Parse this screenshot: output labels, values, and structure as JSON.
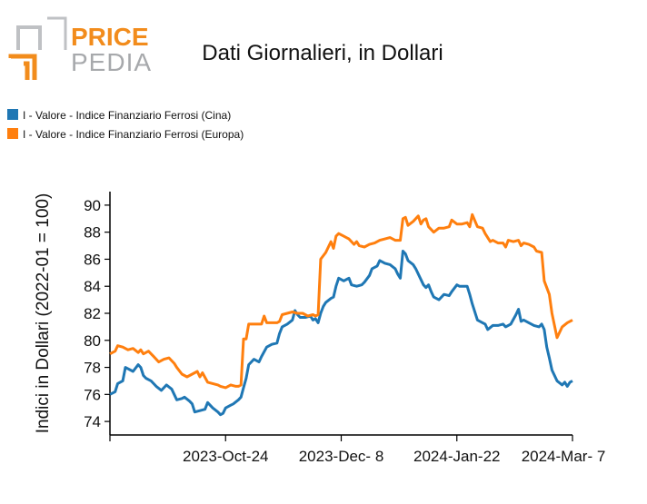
{
  "logo": {
    "line1": "PRICE",
    "line2": "PEDIA",
    "colors": {
      "orange": "#f28c1c",
      "gray": "#a7a9ac"
    }
  },
  "chart_data": {
    "type": "line",
    "title": "Dati Giornalieri, in Dollari",
    "ylabel": "Indici in Dollari (2022-01 = 100)",
    "xlabel": "",
    "ylim": [
      73,
      91
    ],
    "yticks": [
      74,
      76,
      78,
      80,
      82,
      84,
      86,
      88,
      90
    ],
    "xlim": [
      "2023-09-09",
      "2024-03-07"
    ],
    "xticks": [
      "2023-09-09",
      "2023-10-24",
      "2023-12-08",
      "2024-01-22",
      "2024-03-07"
    ],
    "xtick_labels": [
      "",
      "2023-Oct-24",
      "2023-Dec- 8",
      "2024-Jan-22",
      "2024-Mar- 7"
    ],
    "grid": false,
    "legend_position": "top-left",
    "series": [
      {
        "name": "I - Valore - Indice Finanziario Ferrosi (Cina)",
        "color": "#1f77b4",
        "points": [
          [
            "2023-09-09",
            76.0
          ],
          [
            "2023-09-11",
            76.2
          ],
          [
            "2023-09-12",
            76.8
          ],
          [
            "2023-09-14",
            77.0
          ],
          [
            "2023-09-15",
            78.0
          ],
          [
            "2023-09-17",
            77.8
          ],
          [
            "2023-09-18",
            77.7
          ],
          [
            "2023-09-20",
            78.2
          ],
          [
            "2023-09-21",
            78.0
          ],
          [
            "2023-09-22",
            77.4
          ],
          [
            "2023-09-23",
            77.2
          ],
          [
            "2023-09-25",
            77.0
          ],
          [
            "2023-09-27",
            76.6
          ],
          [
            "2023-09-29",
            76.3
          ],
          [
            "2023-10-01",
            76.7
          ],
          [
            "2023-10-03",
            76.4
          ],
          [
            "2023-10-04",
            76.0
          ],
          [
            "2023-10-05",
            75.6
          ],
          [
            "2023-10-07",
            75.7
          ],
          [
            "2023-10-08",
            75.8
          ],
          [
            "2023-10-10",
            75.5
          ],
          [
            "2023-10-11",
            75.3
          ],
          [
            "2023-10-12",
            74.7
          ],
          [
            "2023-10-14",
            74.8
          ],
          [
            "2023-10-16",
            74.9
          ],
          [
            "2023-10-17",
            75.4
          ],
          [
            "2023-10-19",
            75.0
          ],
          [
            "2023-10-21",
            74.7
          ],
          [
            "2023-10-22",
            74.5
          ],
          [
            "2023-10-23",
            74.6
          ],
          [
            "2023-10-24",
            75.0
          ],
          [
            "2023-10-26",
            75.2
          ],
          [
            "2023-10-27",
            75.3
          ],
          [
            "2023-10-29",
            75.6
          ],
          [
            "2023-10-30",
            75.8
          ],
          [
            "2023-10-31",
            76.5
          ],
          [
            "2023-11-01",
            77.2
          ],
          [
            "2023-11-02",
            78.2
          ],
          [
            "2023-11-04",
            78.6
          ],
          [
            "2023-11-06",
            78.4
          ],
          [
            "2023-11-07",
            78.8
          ],
          [
            "2023-11-09",
            79.5
          ],
          [
            "2023-11-11",
            79.7
          ],
          [
            "2023-11-13",
            79.8
          ],
          [
            "2023-11-14",
            80.5
          ],
          [
            "2023-11-15",
            81.0
          ],
          [
            "2023-11-17",
            81.2
          ],
          [
            "2023-11-19",
            81.5
          ],
          [
            "2023-11-20",
            82.2
          ],
          [
            "2023-11-21",
            81.9
          ],
          [
            "2023-11-22",
            81.7
          ],
          [
            "2023-11-24",
            81.7
          ],
          [
            "2023-11-26",
            81.8
          ],
          [
            "2023-11-27",
            81.5
          ],
          [
            "2023-11-28",
            81.6
          ],
          [
            "2023-11-29",
            81.3
          ],
          [
            "2023-11-30",
            82.0
          ],
          [
            "2023-12-01",
            82.5
          ],
          [
            "2023-12-02",
            82.8
          ],
          [
            "2023-12-04",
            83.1
          ],
          [
            "2023-12-05",
            83.2
          ],
          [
            "2023-12-06",
            84.0
          ],
          [
            "2023-12-07",
            84.6
          ],
          [
            "2023-12-09",
            84.4
          ],
          [
            "2023-12-11",
            84.6
          ],
          [
            "2023-12-12",
            84.1
          ],
          [
            "2023-12-14",
            84.0
          ],
          [
            "2023-12-16",
            84.1
          ],
          [
            "2023-12-17",
            84.3
          ],
          [
            "2023-12-19",
            84.8
          ],
          [
            "2023-12-20",
            85.3
          ],
          [
            "2023-12-22",
            85.5
          ],
          [
            "2023-12-23",
            85.9
          ],
          [
            "2023-12-25",
            85.7
          ],
          [
            "2023-12-27",
            85.6
          ],
          [
            "2023-12-29",
            85.3
          ],
          [
            "2023-12-30",
            84.9
          ],
          [
            "2023-12-31",
            84.6
          ],
          [
            "2024-01-01",
            86.6
          ],
          [
            "2024-01-02",
            86.4
          ],
          [
            "2024-01-03",
            85.9
          ],
          [
            "2024-01-05",
            85.6
          ],
          [
            "2024-01-06",
            85.3
          ],
          [
            "2024-01-08",
            84.5
          ],
          [
            "2024-01-09",
            84.1
          ],
          [
            "2024-01-10",
            83.9
          ],
          [
            "2024-01-11",
            84.1
          ],
          [
            "2024-01-12",
            83.6
          ],
          [
            "2024-01-13",
            83.2
          ],
          [
            "2024-01-15",
            83.0
          ],
          [
            "2024-01-17",
            83.4
          ],
          [
            "2024-01-19",
            83.3
          ],
          [
            "2024-01-20",
            83.6
          ],
          [
            "2024-01-22",
            84.1
          ],
          [
            "2024-01-23",
            84.0
          ],
          [
            "2024-01-24",
            84.0
          ],
          [
            "2024-01-26",
            84.0
          ],
          [
            "2024-01-27",
            83.4
          ],
          [
            "2024-01-28",
            82.7
          ],
          [
            "2024-01-30",
            81.5
          ],
          [
            "2024-02-01",
            81.3
          ],
          [
            "2024-02-02",
            81.2
          ],
          [
            "2024-02-03",
            80.8
          ],
          [
            "2024-02-05",
            81.1
          ],
          [
            "2024-02-07",
            81.1
          ],
          [
            "2024-02-09",
            81.2
          ],
          [
            "2024-02-10",
            81.0
          ],
          [
            "2024-02-12",
            81.2
          ],
          [
            "2024-02-14",
            81.9
          ],
          [
            "2024-02-15",
            82.3
          ],
          [
            "2024-02-16",
            81.4
          ],
          [
            "2024-02-17",
            81.5
          ],
          [
            "2024-02-19",
            81.3
          ],
          [
            "2024-02-21",
            81.1
          ],
          [
            "2024-02-23",
            81.0
          ],
          [
            "2024-02-24",
            81.2
          ],
          [
            "2024-02-25",
            80.8
          ],
          [
            "2024-02-26",
            79.5
          ],
          [
            "2024-02-27",
            78.7
          ],
          [
            "2024-02-28",
            77.8
          ],
          [
            "2024-03-01",
            77.0
          ],
          [
            "2024-03-03",
            76.7
          ],
          [
            "2024-03-04",
            76.9
          ],
          [
            "2024-03-05",
            76.6
          ],
          [
            "2024-03-06",
            76.9
          ],
          [
            "2024-03-07",
            77.0
          ]
        ]
      },
      {
        "name": "I - Valore - Indice Finanziario Ferrosi (Europa)",
        "color": "#ff7f0e",
        "points": [
          [
            "2023-09-09",
            79.0
          ],
          [
            "2023-09-11",
            79.2
          ],
          [
            "2023-09-12",
            79.6
          ],
          [
            "2023-09-14",
            79.5
          ],
          [
            "2023-09-16",
            79.3
          ],
          [
            "2023-09-18",
            79.4
          ],
          [
            "2023-09-20",
            79.1
          ],
          [
            "2023-09-21",
            79.3
          ],
          [
            "2023-09-22",
            79.0
          ],
          [
            "2023-09-24",
            79.2
          ],
          [
            "2023-09-26",
            78.8
          ],
          [
            "2023-09-28",
            78.4
          ],
          [
            "2023-09-30",
            78.6
          ],
          [
            "2023-10-02",
            78.7
          ],
          [
            "2023-10-04",
            78.3
          ],
          [
            "2023-10-05",
            78.0
          ],
          [
            "2023-10-07",
            77.5
          ],
          [
            "2023-10-09",
            77.3
          ],
          [
            "2023-10-11",
            77.5
          ],
          [
            "2023-10-13",
            77.7
          ],
          [
            "2023-10-14",
            77.3
          ],
          [
            "2023-10-15",
            77.6
          ],
          [
            "2023-10-17",
            76.9
          ],
          [
            "2023-10-19",
            76.8
          ],
          [
            "2023-10-21",
            76.7
          ],
          [
            "2023-10-22",
            76.6
          ],
          [
            "2023-10-24",
            76.5
          ],
          [
            "2023-10-26",
            76.7
          ],
          [
            "2023-10-28",
            76.6
          ],
          [
            "2023-10-29",
            76.6
          ],
          [
            "2023-10-30",
            76.7
          ],
          [
            "2023-10-31",
            80.1
          ],
          [
            "2023-11-01",
            80.1
          ],
          [
            "2023-11-02",
            81.2
          ],
          [
            "2023-11-04",
            81.2
          ],
          [
            "2023-11-06",
            81.2
          ],
          [
            "2023-11-07",
            81.2
          ],
          [
            "2023-11-08",
            81.8
          ],
          [
            "2023-11-09",
            81.3
          ],
          [
            "2023-11-11",
            81.3
          ],
          [
            "2023-11-13",
            81.3
          ],
          [
            "2023-11-14",
            81.4
          ],
          [
            "2023-11-15",
            81.9
          ],
          [
            "2023-11-17",
            82.0
          ],
          [
            "2023-11-19",
            82.1
          ],
          [
            "2023-11-21",
            82.0
          ],
          [
            "2023-11-23",
            82.0
          ],
          [
            "2023-11-25",
            81.8
          ],
          [
            "2023-11-27",
            81.9
          ],
          [
            "2023-11-28",
            81.8
          ],
          [
            "2023-11-29",
            81.9
          ],
          [
            "2023-11-30",
            86.0
          ],
          [
            "2023-12-02",
            86.5
          ],
          [
            "2023-12-04",
            87.3
          ],
          [
            "2023-12-05",
            86.8
          ],
          [
            "2023-12-06",
            87.7
          ],
          [
            "2023-12-07",
            87.9
          ],
          [
            "2023-12-09",
            87.7
          ],
          [
            "2023-12-11",
            87.5
          ],
          [
            "2023-12-13",
            87.1
          ],
          [
            "2023-12-14",
            87.3
          ],
          [
            "2023-12-15",
            87.0
          ],
          [
            "2023-12-17",
            86.9
          ],
          [
            "2023-12-19",
            87.1
          ],
          [
            "2023-12-21",
            87.2
          ],
          [
            "2023-12-23",
            87.4
          ],
          [
            "2023-12-25",
            87.5
          ],
          [
            "2023-12-27",
            87.6
          ],
          [
            "2023-12-29",
            87.4
          ],
          [
            "2023-12-31",
            87.4
          ],
          [
            "2024-01-01",
            89.0
          ],
          [
            "2024-01-02",
            89.1
          ],
          [
            "2024-01-03",
            88.5
          ],
          [
            "2024-01-05",
            88.8
          ],
          [
            "2024-01-07",
            89.2
          ],
          [
            "2024-01-08",
            88.6
          ],
          [
            "2024-01-09",
            88.9
          ],
          [
            "2024-01-10",
            89.0
          ],
          [
            "2024-01-11",
            88.4
          ],
          [
            "2024-01-13",
            88.0
          ],
          [
            "2024-01-15",
            88.3
          ],
          [
            "2024-01-17",
            88.3
          ],
          [
            "2024-01-19",
            88.4
          ],
          [
            "2024-01-20",
            88.9
          ],
          [
            "2024-01-22",
            88.6
          ],
          [
            "2024-01-24",
            88.6
          ],
          [
            "2024-01-26",
            88.7
          ],
          [
            "2024-01-27",
            88.4
          ],
          [
            "2024-01-28",
            89.3
          ],
          [
            "2024-01-30",
            88.4
          ],
          [
            "2024-02-01",
            88.3
          ],
          [
            "2024-02-02",
            87.9
          ],
          [
            "2024-02-04",
            87.3
          ],
          [
            "2024-02-05",
            87.4
          ],
          [
            "2024-02-07",
            87.2
          ],
          [
            "2024-02-09",
            87.2
          ],
          [
            "2024-02-10",
            86.9
          ],
          [
            "2024-02-11",
            87.4
          ],
          [
            "2024-02-13",
            87.3
          ],
          [
            "2024-02-15",
            87.4
          ],
          [
            "2024-02-16",
            87.0
          ],
          [
            "2024-02-17",
            87.2
          ],
          [
            "2024-02-19",
            87.1
          ],
          [
            "2024-02-21",
            86.9
          ],
          [
            "2024-02-22",
            86.6
          ],
          [
            "2024-02-24",
            86.5
          ],
          [
            "2024-02-25",
            84.4
          ],
          [
            "2024-02-27",
            83.4
          ],
          [
            "2024-02-28",
            82.0
          ],
          [
            "2024-03-01",
            80.2
          ],
          [
            "2024-03-03",
            81.0
          ],
          [
            "2024-03-05",
            81.3
          ],
          [
            "2024-03-07",
            81.5
          ]
        ]
      }
    ]
  }
}
